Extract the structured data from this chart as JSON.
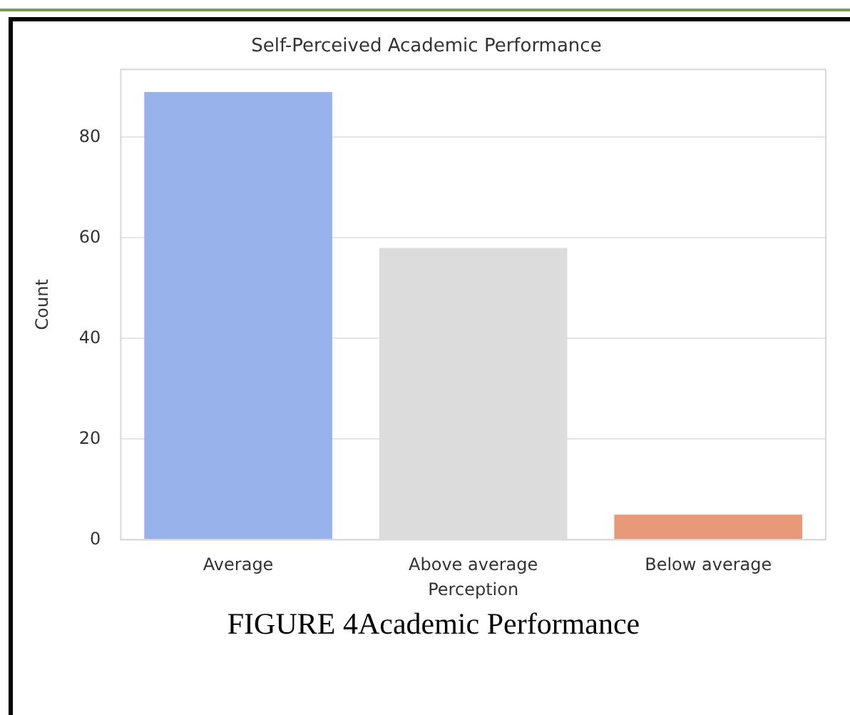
{
  "chart_data": {
    "type": "bar",
    "title": "Self-Perceived Academic Performance",
    "xlabel": "Perception",
    "ylabel": "Count",
    "categories": [
      "Average",
      "Above average",
      "Below average"
    ],
    "values": [
      89,
      58,
      5
    ],
    "colors": [
      "#98b2ec",
      "#dcdcdc",
      "#e8997a"
    ],
    "ylim": [
      0,
      93.5
    ],
    "yticks": [
      0,
      20,
      40,
      60,
      80
    ],
    "grid": "y",
    "annotations": [
      "FIGURE 4Academic Performance"
    ]
  }
}
